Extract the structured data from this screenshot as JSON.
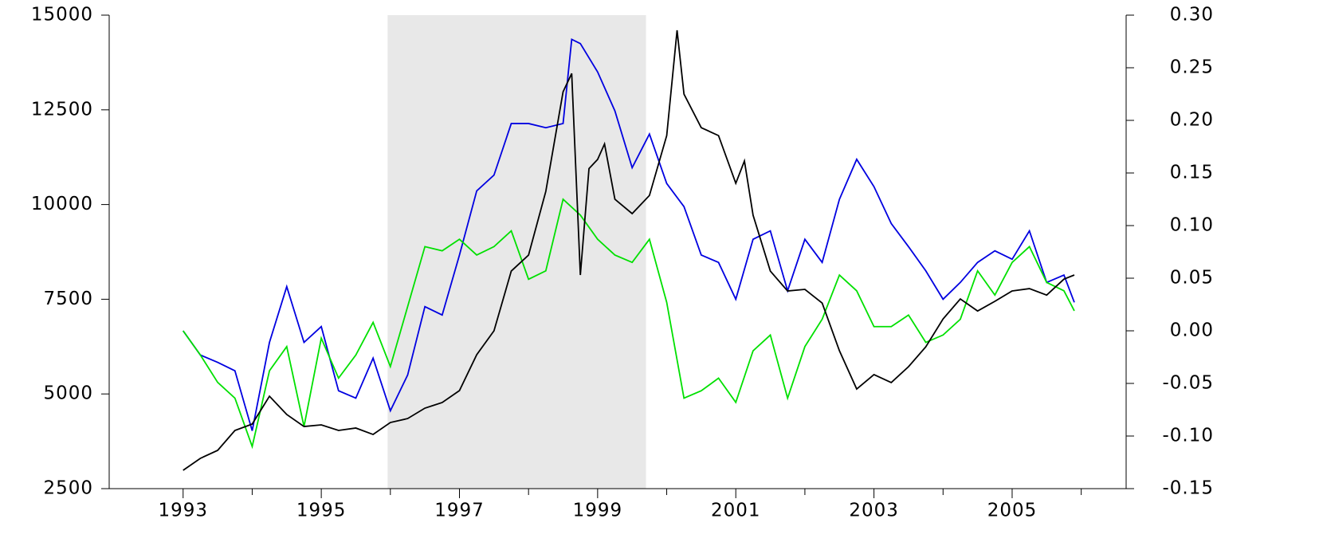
{
  "chart_data": {
    "type": "line",
    "xlim": [
      1991.93,
      2006.65
    ],
    "xticks": [
      1993,
      1995,
      1997,
      1999,
      2001,
      2003,
      2005
    ],
    "xminor": [
      1994,
      1996,
      1998,
      2000,
      2002,
      2004,
      2006
    ],
    "shade": [
      1995.96,
      1999.7
    ],
    "ylim": [
      2500,
      15000
    ],
    "yticks": [
      2500,
      5000,
      7500,
      10000,
      12500,
      15000
    ],
    "y2lim": [
      -0.15,
      0.3
    ],
    "y2ticks": [
      -0.15,
      {
        "value": -0.1,
        "label": "-0.10"
      },
      -0.05,
      {
        "value": 0,
        "label": "0.00"
      },
      0.05,
      {
        "value": 0.1,
        "label": "0.10"
      },
      0.15,
      {
        "value": 0.2,
        "label": "0.20"
      },
      0.25,
      {
        "value": 0.3,
        "label": "0.30"
      }
    ],
    "series": [
      {
        "color": "#0000e0",
        "axis": "y2",
        "x": [
          1993.0,
          1993.25,
          1993.5,
          1993.75,
          1994.0,
          1994.25,
          1994.5,
          1994.75,
          1995.0,
          1995.25,
          1995.5,
          1995.75,
          1996.0,
          1996.25,
          1996.5,
          1996.75,
          1997.0,
          1997.25,
          1997.5,
          1997.75,
          1998.0,
          1998.25,
          1998.5,
          1998.625,
          1998.75,
          1999.0,
          1999.25,
          1999.5,
          1999.75,
          2000.0,
          2000.25,
          2000.5,
          2000.75,
          2001.0,
          2001.25,
          2001.5,
          2001.75,
          2002.0,
          2002.25,
          2002.5,
          2002.75,
          2003.0,
          2003.25,
          2003.5,
          2003.75,
          2004.0,
          2004.25,
          2004.5,
          2004.75,
          2005.0,
          2005.25,
          2005.5,
          2005.75,
          2005.9
        ],
        "values": [
          0.0,
          -0.023,
          -0.03,
          -0.038,
          -0.095,
          -0.011,
          0.042,
          -0.011,
          0.004,
          -0.057,
          -0.064,
          -0.026,
          -0.076,
          -0.042,
          0.023,
          0.015,
          0.072,
          0.133,
          0.148,
          0.197,
          0.197,
          0.193,
          0.197,
          0.277,
          0.273,
          0.246,
          0.209,
          0.155,
          0.187,
          0.14,
          0.118,
          0.072,
          0.065,
          0.03,
          0.087,
          0.095,
          0.038,
          0.087,
          0.065,
          0.125,
          0.163,
          0.137,
          0.102,
          0.08,
          0.057,
          0.03,
          0.046,
          0.065,
          0.076,
          0.068,
          0.095,
          0.046,
          0.053,
          0.027
        ]
      },
      {
        "color": "#00e000",
        "axis": "y2",
        "x": [
          1993.0,
          1993.25,
          1993.5,
          1993.75,
          1994.0,
          1994.25,
          1994.5,
          1994.75,
          1995.0,
          1995.25,
          1995.5,
          1995.75,
          1996.0,
          1996.25,
          1996.5,
          1996.75,
          1997.0,
          1997.25,
          1997.5,
          1997.75,
          1998.0,
          1998.25,
          1998.5,
          1998.75,
          1999.0,
          1999.25,
          1999.5,
          1999.75,
          2000.0,
          2000.25,
          2000.5,
          2000.75,
          2001.0,
          2001.25,
          2001.5,
          2001.75,
          2002.0,
          2002.25,
          2002.5,
          2002.75,
          2003.0,
          2003.25,
          2003.5,
          2003.75,
          2004.0,
          2004.25,
          2004.5,
          2004.75,
          2005.0,
          2005.25,
          2005.5,
          2005.75,
          2005.9
        ],
        "values": [
          0.0,
          -0.023,
          -0.049,
          -0.064,
          -0.11,
          -0.038,
          -0.015,
          -0.091,
          -0.007,
          -0.045,
          -0.023,
          0.008,
          -0.034,
          0.023,
          0.08,
          0.076,
          0.087,
          0.072,
          0.08,
          0.095,
          0.049,
          0.057,
          0.125,
          0.11,
          0.087,
          0.072,
          0.065,
          0.087,
          0.027,
          -0.064,
          -0.057,
          -0.045,
          -0.068,
          -0.019,
          -0.004,
          -0.064,
          -0.015,
          0.011,
          0.053,
          0.038,
          0.004,
          0.004,
          0.015,
          -0.011,
          -0.004,
          0.011,
          0.057,
          0.034,
          0.065,
          0.08,
          0.046,
          0.038,
          0.019
        ]
      },
      {
        "color": "#000000",
        "x": [
          1993.0,
          1993.25,
          1993.5,
          1993.75,
          1994.0,
          1994.25,
          1994.5,
          1994.75,
          1995.0,
          1995.25,
          1995.5,
          1995.75,
          1996.0,
          1996.25,
          1996.5,
          1996.75,
          1997.0,
          1997.25,
          1997.5,
          1997.75,
          1998.0,
          1998.25,
          1998.5,
          1998.625,
          1998.75,
          1998.875,
          1999.0,
          1999.1,
          1999.25,
          1999.5,
          1999.75,
          2000.0,
          2000.15,
          2000.25,
          2000.5,
          2000.75,
          2001.0,
          2001.125,
          2001.25,
          2001.5,
          2001.75,
          2002.0,
          2002.25,
          2002.5,
          2002.75,
          2003.0,
          2003.25,
          2003.5,
          2003.75,
          2004.0,
          2004.25,
          2004.5,
          2004.75,
          2005.0,
          2005.25,
          2005.5,
          2005.75,
          2005.9
        ],
        "values": [
          2984,
          3300,
          3510,
          4036,
          4205,
          4940,
          4457,
          4140,
          4183,
          4036,
          4100,
          3930,
          4246,
          4350,
          4625,
          4773,
          5088,
          6035,
          6666,
          8244,
          8665,
          10348,
          12978,
          13460,
          8140,
          10950,
          11190,
          11600,
          10140,
          9760,
          10240,
          11820,
          14600,
          12915,
          12030,
          11820,
          10560,
          11150,
          9720,
          8244,
          7718,
          7760,
          7400,
          6140,
          5130,
          5510,
          5300,
          5720,
          6245,
          6980,
          7508,
          7190,
          7445,
          7718,
          7780,
          7610,
          8030,
          8140
        ]
      }
    ]
  }
}
